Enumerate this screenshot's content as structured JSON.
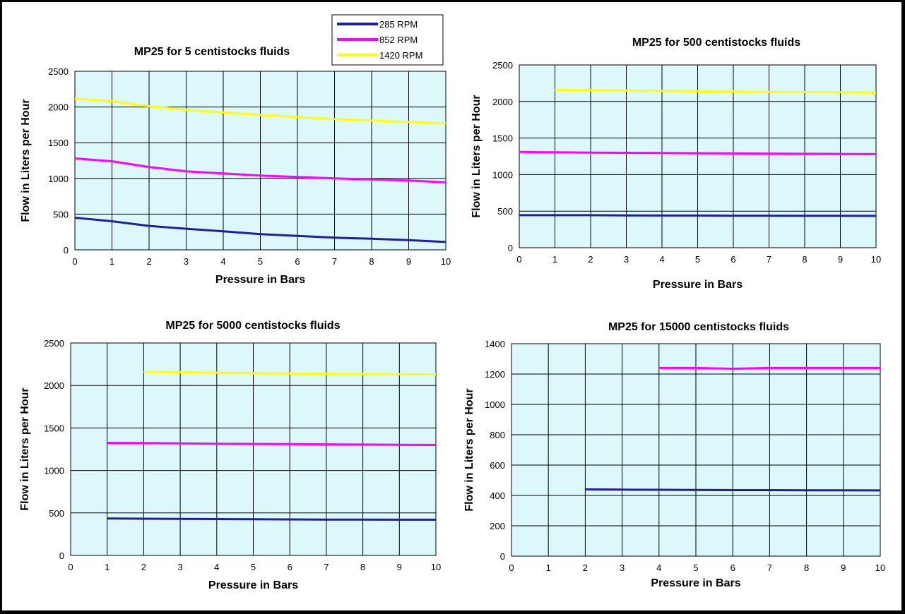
{
  "legend": {
    "entries": [
      {
        "label": "285 RPM",
        "color": "#1f1fa0"
      },
      {
        "label": "852 RPM",
        "color": "#ff00ff"
      },
      {
        "label": "1420 RPM",
        "color": "#ffff00"
      }
    ]
  },
  "colors": {
    "plot_bg": "#ddf8fa",
    "grid": "#000000",
    "page_bg": "#ffffff",
    "frame": "#000000"
  },
  "chart_data": [
    {
      "type": "line",
      "title": "MP25 for 5 centistocks fluids",
      "xlabel": "Pressure in Bars",
      "ylabel": "Flow in Liters per Hour",
      "xlim": [
        0,
        10
      ],
      "ylim": [
        0,
        2500
      ],
      "xticks": [
        "0",
        "1",
        "2",
        "3",
        "4",
        "5",
        "6",
        "7",
        "8",
        "9",
        "10"
      ],
      "yticks": [
        "0",
        "500",
        "1000",
        "1500",
        "2000",
        "2500"
      ],
      "ytick_values": [
        0,
        500,
        1000,
        1500,
        2000,
        2500
      ],
      "grid": true,
      "series": [
        {
          "name": "285 RPM",
          "x": [
            0,
            1,
            2,
            3,
            4,
            5,
            6,
            7,
            8,
            9,
            10
          ],
          "y": [
            450,
            400,
            335,
            295,
            260,
            220,
            195,
            170,
            155,
            135,
            110
          ]
        },
        {
          "name": "852 RPM",
          "x": [
            0,
            1,
            2,
            3,
            4,
            5,
            6,
            7,
            8,
            9,
            10
          ],
          "y": [
            1280,
            1240,
            1160,
            1100,
            1070,
            1040,
            1020,
            1000,
            985,
            970,
            945
          ]
        },
        {
          "name": "1420 RPM",
          "x": [
            0,
            1,
            2,
            3,
            4,
            5,
            6,
            7,
            8,
            9,
            10
          ],
          "y": [
            2120,
            2080,
            2010,
            1960,
            1925,
            1890,
            1860,
            1830,
            1810,
            1790,
            1770
          ]
        }
      ]
    },
    {
      "type": "line",
      "title": "MP25 for 500 centistocks fluids",
      "xlabel": "Pressure in Bars",
      "ylabel": "Flow in Liters per Hour",
      "xlim": [
        0,
        10
      ],
      "ylim": [
        0,
        2500
      ],
      "xticks": [
        "0",
        "1",
        "2",
        "3",
        "4",
        "5",
        "6",
        "7",
        "8",
        "9",
        "10"
      ],
      "yticks": [
        "0",
        "500",
        "1000",
        "1500",
        "2000",
        "2500"
      ],
      "ytick_values": [
        0,
        500,
        1000,
        1500,
        2000,
        2500
      ],
      "grid": true,
      "series": [
        {
          "name": "285 RPM",
          "x": [
            0,
            1,
            2,
            3,
            4,
            5,
            6,
            7,
            8,
            9,
            10
          ],
          "y": [
            445,
            445,
            445,
            442,
            440,
            440,
            438,
            438,
            436,
            436,
            435
          ]
        },
        {
          "name": "852 RPM",
          "x": [
            0,
            1,
            2,
            3,
            4,
            5,
            6,
            7,
            8,
            9,
            10
          ],
          "y": [
            1310,
            1305,
            1300,
            1298,
            1295,
            1292,
            1290,
            1288,
            1285,
            1283,
            1280
          ]
        },
        {
          "name": "1420 RPM",
          "x": [
            1,
            2,
            3,
            4,
            5,
            6,
            7,
            8,
            9,
            10
          ],
          "y": [
            2160,
            2155,
            2150,
            2145,
            2140,
            2135,
            2130,
            2128,
            2125,
            2120
          ]
        }
      ]
    },
    {
      "type": "line",
      "title": "MP25 for 5000 centistocks fluids",
      "xlabel": "Pressure in Bars",
      "ylabel": "Flow in Liters per Hour",
      "xlim": [
        0,
        10
      ],
      "ylim": [
        0,
        2500
      ],
      "xticks": [
        "0",
        "1",
        "2",
        "3",
        "4",
        "5",
        "6",
        "7",
        "8",
        "9",
        "10"
      ],
      "yticks": [
        "0",
        "500",
        "1000",
        "1500",
        "2000",
        "2500"
      ],
      "ytick_values": [
        0,
        500,
        1000,
        1500,
        2000,
        2500
      ],
      "grid": true,
      "series": [
        {
          "name": "285 RPM",
          "x": [
            1,
            2,
            3,
            4,
            5,
            6,
            7,
            8,
            9,
            10
          ],
          "y": [
            435,
            432,
            430,
            428,
            426,
            424,
            422,
            421,
            420,
            420
          ]
        },
        {
          "name": "852 RPM",
          "x": [
            1,
            2,
            3,
            4,
            5,
            6,
            7,
            8,
            9,
            10
          ],
          "y": [
            1325,
            1322,
            1318,
            1315,
            1312,
            1310,
            1307,
            1305,
            1302,
            1300
          ]
        },
        {
          "name": "1420 RPM",
          "x": [
            2,
            3,
            4,
            5,
            6,
            7,
            8,
            9,
            10
          ],
          "y": [
            2160,
            2155,
            2150,
            2145,
            2142,
            2138,
            2135,
            2132,
            2130
          ]
        }
      ]
    },
    {
      "type": "line",
      "title": "MP25 for 15000 centistocks fluids",
      "xlabel": "Pressure in Bars",
      "ylabel": "Flow in Liters per Hour",
      "xlim": [
        0,
        10
      ],
      "ylim": [
        0,
        1400
      ],
      "xticks": [
        "0",
        "1",
        "2",
        "3",
        "4",
        "5",
        "6",
        "7",
        "8",
        "9",
        "10"
      ],
      "yticks": [
        "0",
        "200",
        "400",
        "600",
        "800",
        "1000",
        "1200",
        "1400"
      ],
      "ytick_values": [
        0,
        200,
        400,
        600,
        800,
        1000,
        1200,
        1400
      ],
      "grid": true,
      "series": [
        {
          "name": "285 RPM",
          "x": [
            2,
            3,
            4,
            5,
            6,
            7,
            8,
            9,
            10
          ],
          "y": [
            440,
            438,
            437,
            436,
            435,
            435,
            434,
            434,
            433
          ]
        },
        {
          "name": "852 RPM",
          "x": [
            4,
            5,
            6,
            7,
            8,
            9,
            10
          ],
          "y": [
            1240,
            1240,
            1235,
            1240,
            1240,
            1240,
            1240
          ]
        }
      ]
    }
  ]
}
